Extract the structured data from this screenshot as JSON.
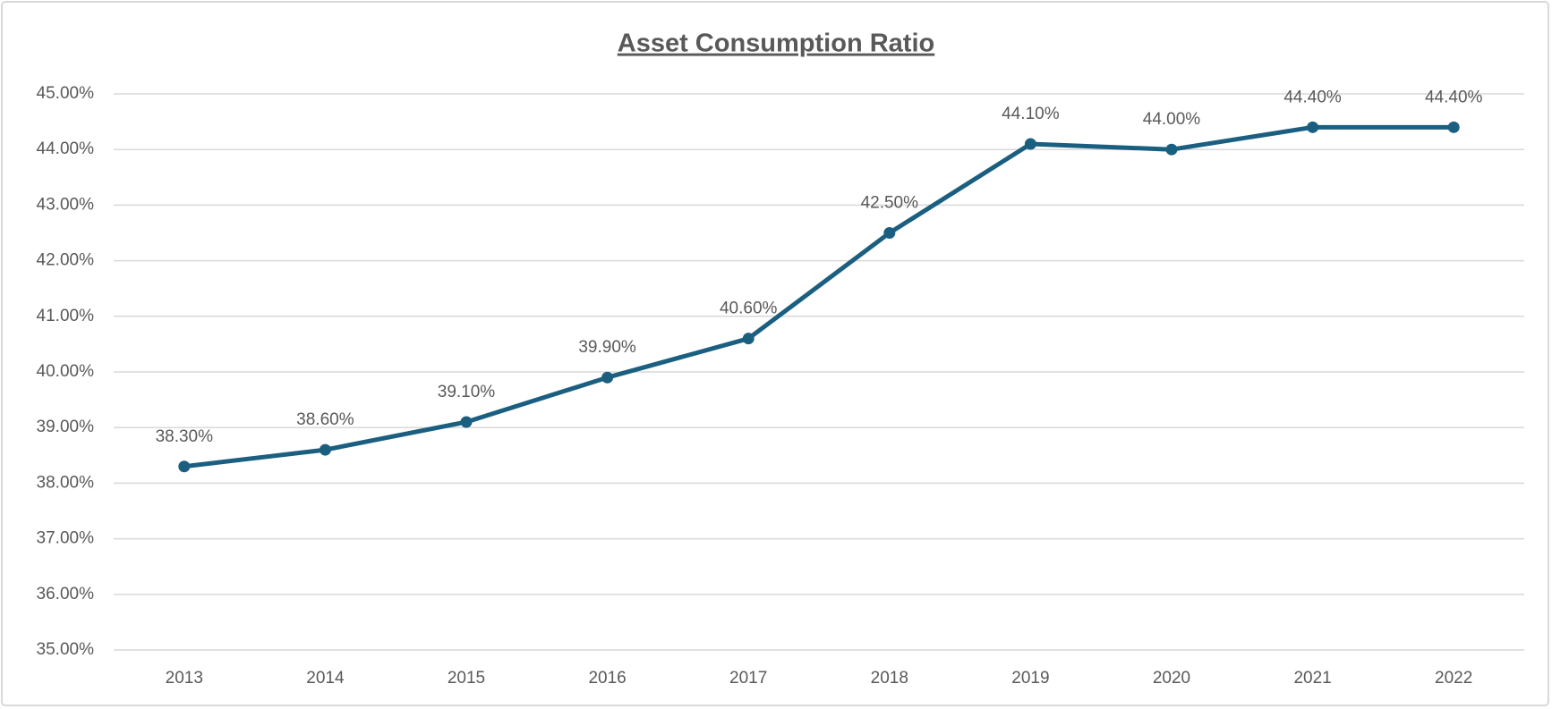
{
  "chart_data": {
    "type": "line",
    "title": "Asset Consumption Ratio",
    "categories": [
      "2013",
      "2014",
      "2015",
      "2016",
      "2017",
      "2018",
      "2019",
      "2020",
      "2021",
      "2022"
    ],
    "series": [
      {
        "name": "Asset Consumption Ratio",
        "color": "#1b5f80",
        "values": [
          38.3,
          38.6,
          39.1,
          39.9,
          40.6,
          42.5,
          44.1,
          44.0,
          44.4,
          44.4
        ],
        "value_labels": [
          "38.30%",
          "38.60%",
          "39.10%",
          "39.90%",
          "40.60%",
          "42.50%",
          "44.10%",
          "44.00%",
          "44.40%",
          "44.40%"
        ]
      }
    ],
    "ylim": [
      35,
      45
    ],
    "yticks": [
      {
        "value": 35,
        "label": "35.00%"
      },
      {
        "value": 36,
        "label": "36.00%"
      },
      {
        "value": 37,
        "label": "37.00%"
      },
      {
        "value": 38,
        "label": "38.00%"
      },
      {
        "value": 39,
        "label": "39.00%"
      },
      {
        "value": 40,
        "label": "40.00%"
      },
      {
        "value": 41,
        "label": "41.00%"
      },
      {
        "value": 42,
        "label": "42.00%"
      },
      {
        "value": 43,
        "label": "43.00%"
      },
      {
        "value": 44,
        "label": "44.00%"
      },
      {
        "value": 45,
        "label": "45.00%"
      }
    ],
    "grid": true
  }
}
